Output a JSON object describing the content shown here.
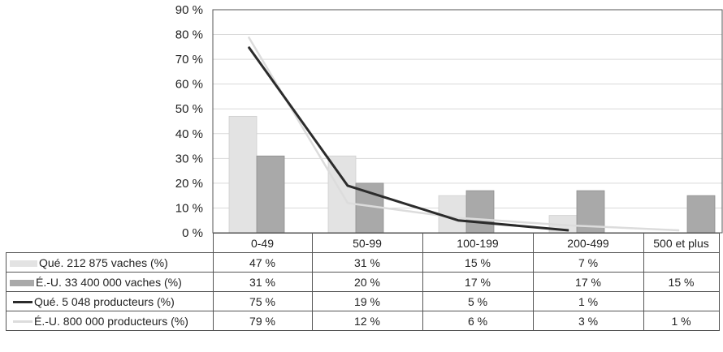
{
  "chart_data": {
    "type": "bar",
    "categories": [
      "0-49",
      "50-99",
      "100-199",
      "200-499",
      "500 et plus"
    ],
    "ylim": [
      0,
      90
    ],
    "y_ticks": [
      "0 %",
      "10 %",
      "20 %",
      "30 %",
      "40 %",
      "50 %",
      "60 %",
      "70 %",
      "80 %",
      "90 %"
    ],
    "grid": true,
    "series": [
      {
        "name": "Qué. 212 875 vaches (%)",
        "kind": "bar",
        "color": "#e3e3e3",
        "values": [
          47,
          31,
          15,
          7,
          null
        ],
        "labels": [
          "47 %",
          "31 %",
          "15 %",
          "7 %",
          ""
        ]
      },
      {
        "name": "É.-U. 33 400 000 vaches (%)",
        "kind": "bar",
        "color": "#a9a9a9",
        "values": [
          31,
          20,
          17,
          17,
          15
        ],
        "labels": [
          "31 %",
          "20 %",
          "17 %",
          "17 %",
          "15 %"
        ]
      },
      {
        "name": "Qué. 5 048 producteurs (%)",
        "kind": "line",
        "color": "#2b2b2b",
        "values": [
          75,
          19,
          5,
          1,
          null
        ],
        "labels": [
          "75 %",
          "19 %",
          "5 %",
          "1 %",
          ""
        ]
      },
      {
        "name": "É.-U. 800 000 producteurs (%)",
        "kind": "line",
        "color": "#dcdcdc",
        "values": [
          79,
          12,
          6,
          3,
          1
        ],
        "labels": [
          "79 %",
          "12 %",
          "6 %",
          "3 %",
          "1 %"
        ]
      }
    ]
  }
}
